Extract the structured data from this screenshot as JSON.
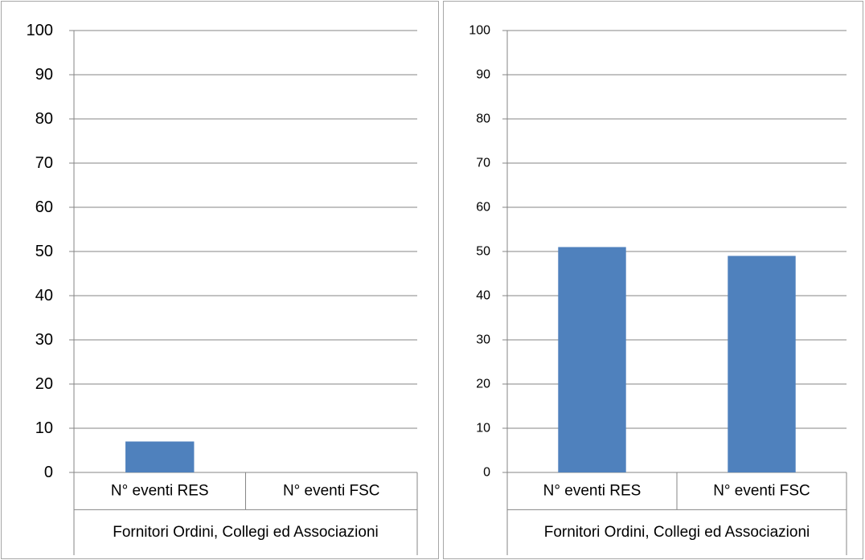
{
  "chart_data": [
    {
      "type": "bar",
      "title": "",
      "ylabel": "",
      "xlabel": "",
      "group_label": "Fornitori Ordini, Collegi ed Associazioni",
      "categories": [
        "N° eventi RES",
        "N° eventi FSC"
      ],
      "values": [
        7,
        0
      ],
      "ylim": [
        0,
        100
      ],
      "yticks": [
        0,
        10,
        20,
        30,
        40,
        50,
        60,
        70,
        80,
        90,
        100
      ],
      "grid": true,
      "bar_color": "#4f81bd"
    },
    {
      "type": "bar",
      "title": "",
      "ylabel": "",
      "xlabel": "",
      "group_label": "Fornitori Ordini, Collegi ed Associazioni",
      "categories": [
        "N° eventi RES",
        "N° eventi FSC"
      ],
      "values": [
        51,
        49
      ],
      "ylim": [
        0,
        100
      ],
      "yticks": [
        0,
        10,
        20,
        30,
        40,
        50,
        60,
        70,
        80,
        90,
        100
      ],
      "grid": true,
      "bar_color": "#4f81bd"
    }
  ]
}
